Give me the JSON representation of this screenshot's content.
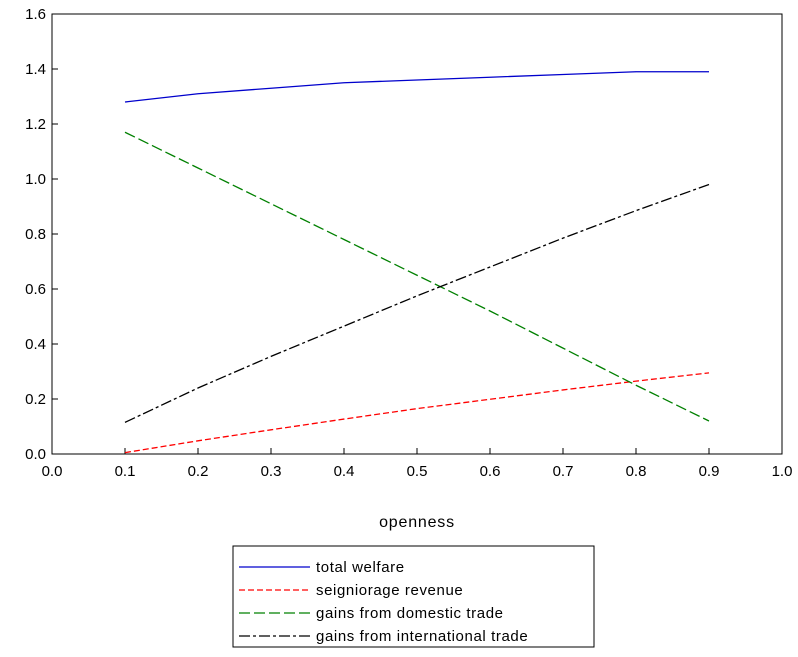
{
  "chart_data": {
    "type": "line",
    "title": "",
    "xlabel": "openness",
    "ylabel": "",
    "xlim": [
      0.0,
      1.0
    ],
    "ylim": [
      0.0,
      1.6
    ],
    "x_ticks": [
      "0.0",
      "0.1",
      "0.2",
      "0.3",
      "0.4",
      "0.5",
      "0.6",
      "0.7",
      "0.8",
      "0.9",
      "1.0"
    ],
    "y_ticks": [
      "0.0",
      "0.2",
      "0.4",
      "0.6",
      "0.8",
      "1.0",
      "1.2",
      "1.4",
      "1.6"
    ],
    "grid": false,
    "legend_position": "bottom-center",
    "x": [
      0.1,
      0.2,
      0.3,
      0.4,
      0.5,
      0.6,
      0.7,
      0.8,
      0.9
    ],
    "series": [
      {
        "name": "total welfare",
        "color": "#0000cc",
        "dash": "solid",
        "values": [
          1.28,
          1.31,
          1.33,
          1.35,
          1.36,
          1.37,
          1.38,
          1.39,
          1.39
        ]
      },
      {
        "name": "seigniorage revenue",
        "color": "#ff0000",
        "dash": "short-dash",
        "values": [
          0.005,
          0.048,
          0.088,
          0.127,
          0.165,
          0.199,
          0.233,
          0.265,
          0.295
        ]
      },
      {
        "name": "gains from domestic trade",
        "color": "#008000",
        "dash": "long-dash",
        "values": [
          1.17,
          1.04,
          0.91,
          0.78,
          0.65,
          0.52,
          0.385,
          0.25,
          0.12
        ]
      },
      {
        "name": "gains from international trade",
        "color": "#000000",
        "dash": "dash-dot",
        "values": [
          0.115,
          0.24,
          0.355,
          0.465,
          0.575,
          0.68,
          0.785,
          0.885,
          0.98
        ]
      }
    ]
  }
}
